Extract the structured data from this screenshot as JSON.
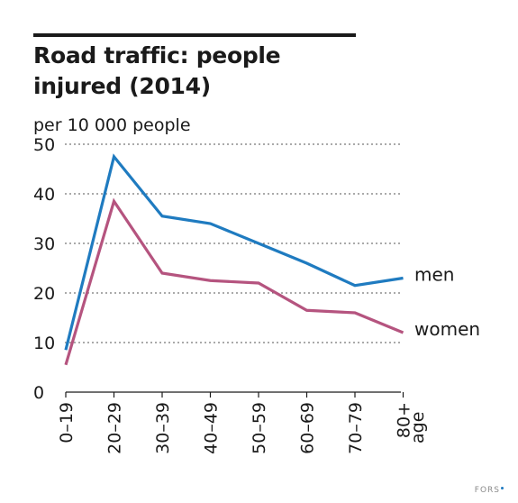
{
  "chart_data": {
    "type": "line",
    "title": "Road traffic: people injured (2014)",
    "ylabel": "per 10 000 people",
    "xlabel": "age",
    "categories": [
      "0–19",
      "20–29",
      "30–39",
      "40–49",
      "50–59",
      "60–69",
      "70–79",
      "80+"
    ],
    "ylim": [
      0,
      50
    ],
    "yticks": [
      "0",
      "10",
      "20",
      "30",
      "40",
      "50"
    ],
    "grid": "horizontal dotted",
    "legend": "direct labels at line ends",
    "series": [
      {
        "name": "men",
        "color": "#1f7bc0",
        "values": [
          8.5,
          47.5,
          35.5,
          34,
          30,
          26,
          21.5,
          23
        ]
      },
      {
        "name": "women",
        "color": "#b5547f",
        "values": [
          5.5,
          38.5,
          24,
          22.5,
          22,
          16.5,
          16,
          12
        ]
      }
    ]
  },
  "credit": "FORS"
}
